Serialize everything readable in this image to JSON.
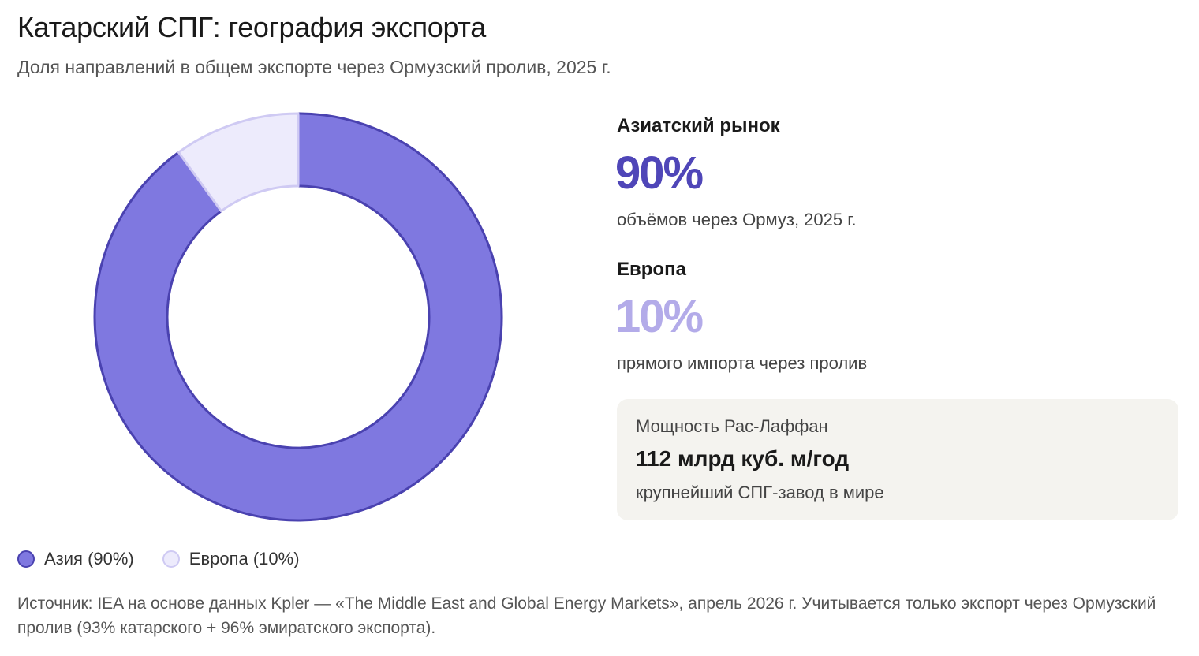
{
  "header": {
    "title": "Катарский СПГ: география экспорта",
    "subtitle": "Доля направлений в общем экспорте через Ормузский пролив, 2025 г."
  },
  "chart_data": {
    "type": "pie",
    "variant": "donut",
    "title": "Катарский СПГ: география экспорта",
    "subtitle": "Доля направлений в общем экспорте через Ормузский пролив, 2025 г.",
    "unit": "%",
    "categories": [
      "Азия",
      "Европа"
    ],
    "values": [
      90,
      10
    ],
    "colors": [
      "#7f78e0",
      "#edebfc"
    ],
    "stroke_colors": [
      "#4a42b0",
      "#cfcaf3"
    ],
    "legend": [
      "Азия (90%)",
      "Европа (10%)"
    ],
    "legend_position": "bottom-left"
  },
  "stats": {
    "asia": {
      "label": "Азиатский рынок",
      "value": "90%",
      "note": "объёмов через Ормуз, 2025 г.",
      "color": "#4f46b8"
    },
    "europe": {
      "label": "Европа",
      "value": "10%",
      "note": "прямого импорта через пролив",
      "color": "#b3abe9"
    }
  },
  "card": {
    "label": "Мощность Рас-Лаффан",
    "value": "112 млрд куб. м/год",
    "note": "крупнейший СПГ-завод в мире"
  },
  "source": "Источник: IEA на основе данных Kpler — «The Middle East and Global Energy Markets», апрель 2026 г. Учитывается только экспорт через Ормузский пролив (93% катарского + 96% эмиратского экспорта)."
}
